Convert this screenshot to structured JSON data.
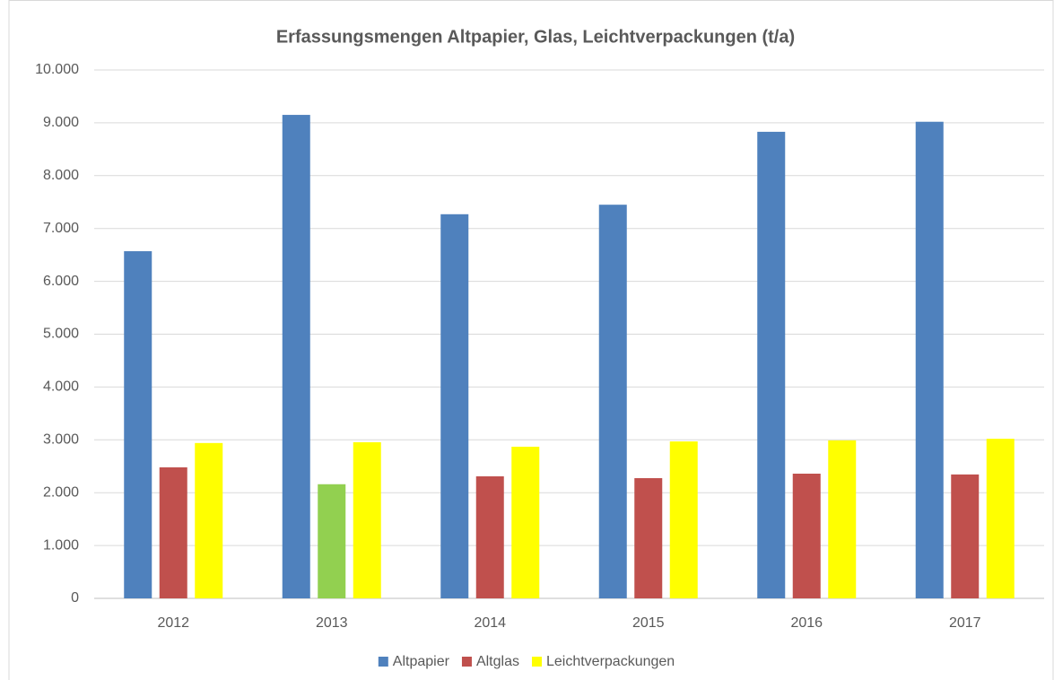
{
  "chart_data": {
    "type": "bar",
    "title": "Erfassungsmengen Altpapier, Glas, Leichtverpackungen (t/a)",
    "categories": [
      "2012",
      "2013",
      "2014",
      "2015",
      "2016",
      "2017"
    ],
    "series": [
      {
        "name": "Altpapier",
        "color": "#4f81bd",
        "values": [
          6570,
          9150,
          7270,
          7450,
          8830,
          9020
        ]
      },
      {
        "name": "Altglas",
        "color": "#c0504d",
        "colors": [
          "#c0504d",
          "#92d050",
          "#c0504d",
          "#c0504d",
          "#c0504d",
          "#c0504d"
        ],
        "values": [
          2480,
          2160,
          2310,
          2275,
          2360,
          2345
        ]
      },
      {
        "name": "Leichtverpackungen",
        "color": "#ffff00",
        "values": [
          2940,
          2955,
          2870,
          2970,
          2990,
          3020
        ]
      }
    ],
    "ylim": [
      0,
      10000
    ],
    "yticks": [
      0,
      {
        "value": 1000,
        "label": "1.000"
      },
      {
        "value": 2000,
        "label": "2.000"
      },
      {
        "value": 3000,
        "label": "3.000"
      },
      {
        "value": 4000,
        "label": "4.000"
      },
      {
        "value": 5000,
        "label": "5.000"
      },
      {
        "value": 6000,
        "label": "6.000"
      },
      {
        "value": 7000,
        "label": "7.000"
      },
      {
        "value": 8000,
        "label": "8.000"
      },
      {
        "value": 9000,
        "label": "9.000"
      },
      {
        "value": 10000,
        "label": "10.000"
      }
    ],
    "grid": true,
    "legend": "bottom"
  }
}
